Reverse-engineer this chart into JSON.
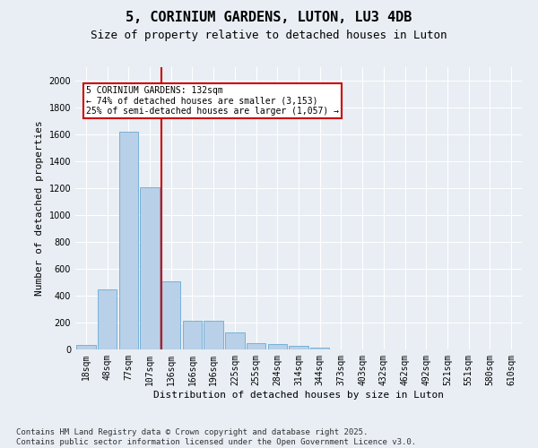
{
  "title1": "5, CORINIUM GARDENS, LUTON, LU3 4DB",
  "title2": "Size of property relative to detached houses in Luton",
  "xlabel": "Distribution of detached houses by size in Luton",
  "ylabel": "Number of detached properties",
  "categories": [
    "18sqm",
    "48sqm",
    "77sqm",
    "107sqm",
    "136sqm",
    "166sqm",
    "196sqm",
    "225sqm",
    "255sqm",
    "284sqm",
    "314sqm",
    "344sqm",
    "373sqm",
    "403sqm",
    "432sqm",
    "462sqm",
    "492sqm",
    "521sqm",
    "551sqm",
    "580sqm",
    "610sqm"
  ],
  "values": [
    35,
    450,
    1620,
    1210,
    510,
    215,
    215,
    130,
    50,
    40,
    25,
    15,
    0,
    0,
    0,
    0,
    0,
    0,
    0,
    0,
    0
  ],
  "bar_color": "#b8d0e8",
  "bar_edge_color": "#6aaad4",
  "vline_color": "#cc0000",
  "annotation_text": "5 CORINIUM GARDENS: 132sqm\n← 74% of detached houses are smaller (3,153)\n25% of semi-detached houses are larger (1,057) →",
  "annotation_box_color": "#ffffff",
  "annotation_box_edge": "#cc0000",
  "ylim": [
    0,
    2100
  ],
  "yticks": [
    0,
    200,
    400,
    600,
    800,
    1000,
    1200,
    1400,
    1600,
    1800,
    2000
  ],
  "footer": "Contains HM Land Registry data © Crown copyright and database right 2025.\nContains public sector information licensed under the Open Government Licence v3.0.",
  "bg_color": "#e8eef4",
  "plot_bg": "#e8eef4",
  "grid_color": "#ffffff",
  "title_fontsize": 11,
  "subtitle_fontsize": 9,
  "axis_label_fontsize": 8,
  "tick_fontsize": 7,
  "footer_fontsize": 6.5
}
